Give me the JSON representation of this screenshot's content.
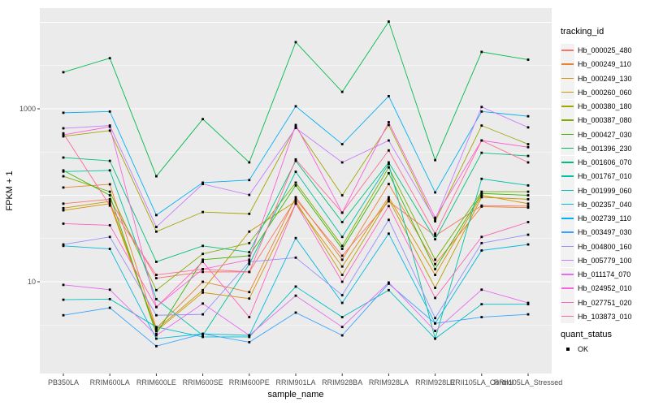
{
  "figure": {
    "panel_bg": "#EBEBEB",
    "grid_color": "#FFFFFF",
    "tick_label_color": "#4D4D4D",
    "point_color": "#000000"
  },
  "chart_data": {
    "type": "line",
    "title": "",
    "xlabel": "sample_name",
    "ylabel": "FPKM + 1",
    "y_scale": "log10",
    "y_tick_labels": [
      "1000",
      "10"
    ],
    "y_tick_values": [
      1000,
      10
    ],
    "ylim": [
      1.5,
      15000
    ],
    "grid": true,
    "legend_position": "right",
    "categories": [
      "PB350LA",
      "RRIM600LA",
      "RRIM600LE",
      "RRIM600SE",
      "RRIM600PE",
      "RRIM901LA",
      "RRIM928BA",
      "RRIM928LA",
      "RRIM928LE",
      "RRII105LA_Control",
      "RRII105LA_Stressed"
    ],
    "legend": {
      "title": "tracking_id"
    },
    "legend2": {
      "title": "quant_status",
      "items": [
        {
          "label": "OK"
        }
      ]
    },
    "series": [
      {
        "name": "Hb_000025_480",
        "color": "#F8766D",
        "values": [
          80,
          90,
          11,
          13,
          13,
          90,
          20,
          85,
          34,
          76,
          75
        ]
      },
      {
        "name": "Hb_000249_110",
        "color": "#EA8331",
        "values": [
          123,
          134,
          2.9,
          10,
          7.6,
          95,
          18,
          135,
          16,
          74,
          72
        ]
      },
      {
        "name": "Hb_000249_130",
        "color": "#D89000",
        "values": [
          67,
          80,
          2.7,
          7.5,
          6.4,
          80,
          15,
          95,
          12,
          100,
          80
        ]
      },
      {
        "name": "Hb_000260_060",
        "color": "#C09B00",
        "values": [
          71,
          85,
          2.8,
          8,
          38,
          85,
          12,
          90,
          8.5,
          95,
          90
        ]
      },
      {
        "name": "Hb_000380_180",
        "color": "#A3A500",
        "values": [
          480,
          560,
          38,
          64,
          61,
          620,
          100,
          650,
          50,
          640,
          390
        ]
      },
      {
        "name": "Hb_000387_080",
        "color": "#7CAE00",
        "values": [
          166,
          110,
          8,
          21,
          28,
          140,
          26,
          210,
          18,
          110,
          110
        ]
      },
      {
        "name": "Hb_000427_030",
        "color": "#39B600",
        "values": [
          194,
          100,
          2.5,
          18,
          20,
          130,
          24,
          180,
          14,
          105,
          100
        ]
      },
      {
        "name": "Hb_001396_230",
        "color": "#00BB4E",
        "values": [
          2650,
          3850,
          166,
          760,
          240,
          5900,
          1570,
          10200,
          255,
          4550,
          3700
        ]
      },
      {
        "name": "Hb_001606_070",
        "color": "#00BF7D",
        "values": [
          273,
          250,
          17,
          26,
          22,
          250,
          49,
          240,
          31,
          310,
          285
        ]
      },
      {
        "name": "Hb_001767_010",
        "color": "#00C1A3",
        "values": [
          188,
          194,
          6.3,
          2.4,
          16,
          187,
          33,
          230,
          2.2,
          155,
          130
        ]
      },
      {
        "name": "Hb_001999_060",
        "color": "#00BFC4",
        "values": [
          6.2,
          6.3,
          3,
          2.3,
          2.3,
          8.8,
          3.9,
          8,
          2.2,
          5.5,
          5.5
        ]
      },
      {
        "name": "Hb_002357_040",
        "color": "#00BAE0",
        "values": [
          26,
          24,
          2.2,
          2.5,
          2.4,
          32,
          5.7,
          36,
          3.3,
          23,
          27
        ]
      },
      {
        "name": "Hb_002739_110",
        "color": "#00B0F6",
        "values": [
          900,
          930,
          59,
          140,
          150,
          1070,
          390,
          1400,
          108,
          930,
          820
        ]
      },
      {
        "name": "Hb_003497_030",
        "color": "#35A2FF",
        "values": [
          4.1,
          5,
          1.8,
          2.5,
          2,
          4.4,
          2.4,
          9.5,
          3.3,
          3.9,
          4.2
        ]
      },
      {
        "name": "Hb_004800_160",
        "color": "#9590FF",
        "values": [
          27,
          33,
          4.1,
          4.2,
          17,
          19,
          7,
          52,
          3.8,
          28,
          35
        ]
      },
      {
        "name": "Hb_005779_100",
        "color": "#C77CFF",
        "values": [
          595,
          640,
          43,
          135,
          101,
          600,
          240,
          430,
          52,
          1050,
          610
        ]
      },
      {
        "name": "Hb_011174_070",
        "color": "#E76BF3",
        "values": [
          9.2,
          8.1,
          2.4,
          5.6,
          2.4,
          6.9,
          3,
          9.8,
          2.7,
          8.1,
          5.7
        ]
      },
      {
        "name": "Hb_024952_010",
        "color": "#FA62DB",
        "values": [
          500,
          620,
          5.1,
          14,
          18,
          650,
          63,
          700,
          55,
          430,
          360
        ]
      },
      {
        "name": "Hb_027751_020",
        "color": "#FF62BC",
        "values": [
          47,
          45,
          5.1,
          17,
          3.9,
          80,
          10,
          75,
          6.5,
          33,
          49
        ]
      },
      {
        "name": "Hb_103873_010",
        "color": "#FF6A98",
        "values": [
          520,
          76,
          12,
          14,
          13,
          260,
          63,
          330,
          36,
          430,
          240
        ]
      }
    ]
  }
}
